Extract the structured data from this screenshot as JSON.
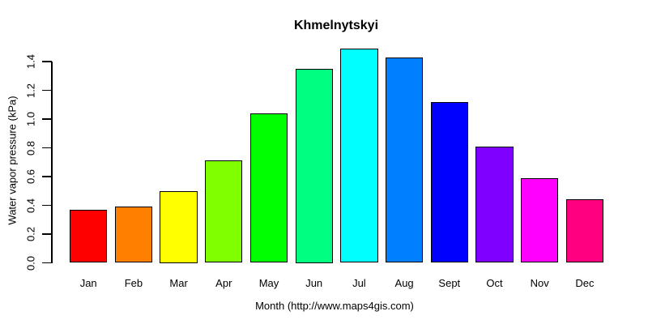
{
  "title": "Khmelnytskyi",
  "chart_data": {
    "type": "bar",
    "title": "Khmelnytskyi",
    "xlabel": "Month (http://www.maps4gis.com)",
    "ylabel": "Water vapor pressure (kPa)",
    "categories": [
      "Jan",
      "Feb",
      "Mar",
      "Apr",
      "May",
      "Jun",
      "Jul",
      "Aug",
      "Sept",
      "Oct",
      "Nov",
      "Dec"
    ],
    "values": [
      0.37,
      0.39,
      0.5,
      0.71,
      1.04,
      1.35,
      1.49,
      1.43,
      1.12,
      0.81,
      0.59,
      0.44
    ],
    "bar_colors": [
      "#FF0000",
      "#FF8000",
      "#FFFF00",
      "#80FF00",
      "#00FF00",
      "#00FF80",
      "#00FFFF",
      "#0080FF",
      "#0000FF",
      "#8000FF",
      "#FF00FF",
      "#FF0080"
    ],
    "bar_border_color": "#000000",
    "ylim": [
      0.0,
      1.4
    ],
    "ytick_labels": [
      "0.0",
      "0.2",
      "0.4",
      "0.6",
      "0.8",
      "1.0",
      "1.2",
      "1.4"
    ],
    "ytick_step": 0.2,
    "grid": false,
    "legend_position": "none",
    "background_color": "#FFFFFF",
    "text_color": "#000000"
  }
}
